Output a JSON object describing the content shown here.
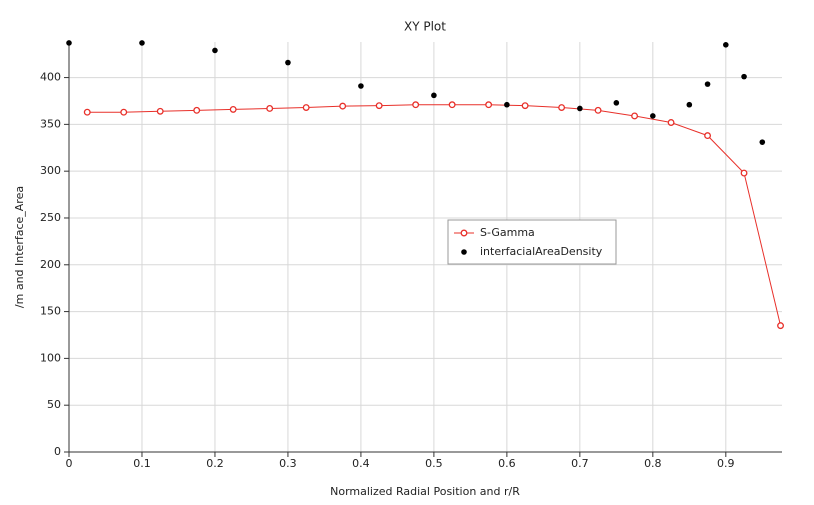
{
  "chart_data": {
    "type": "scatter",
    "title": "XY Plot",
    "x_label": "Normalized Radial Position and r/R",
    "y_label": "/m and Interface_Area",
    "xlim": [
      0,
      0.977
    ],
    "ylim": [
      0,
      438
    ],
    "xticks": [
      0,
      0.1,
      0.2,
      0.3,
      0.4,
      0.5,
      0.6,
      0.7,
      0.8,
      0.9
    ],
    "yticks": [
      0,
      50,
      100,
      150,
      200,
      250,
      300,
      350,
      400
    ],
    "grid": true,
    "legend": "center-right",
    "series": [
      {
        "name": "S-Gamma",
        "color": "#e8302a",
        "style": "line-markers",
        "x": [
          0.025,
          0.075,
          0.125,
          0.175,
          0.225,
          0.275,
          0.325,
          0.375,
          0.425,
          0.475,
          0.525,
          0.575,
          0.625,
          0.675,
          0.725,
          0.775,
          0.825,
          0.875,
          0.925,
          0.975
        ],
        "values": [
          363,
          363,
          364,
          365,
          366,
          367,
          368,
          369.5,
          370,
          371,
          371,
          371,
          370,
          368,
          365,
          359,
          352,
          338,
          298,
          135
        ]
      },
      {
        "name": "interfacialAreaDensity",
        "color": "#000000",
        "style": "markers",
        "x": [
          0,
          0.1,
          0.2,
          0.3,
          0.4,
          0.5,
          0.6,
          0.7,
          0.75,
          0.8,
          0.85,
          0.875,
          0.9,
          0.925,
          0.95
        ],
        "values": [
          437,
          437,
          429,
          416,
          391,
          381,
          371,
          367,
          373,
          359,
          371,
          393,
          435,
          401,
          331
        ]
      }
    ]
  }
}
